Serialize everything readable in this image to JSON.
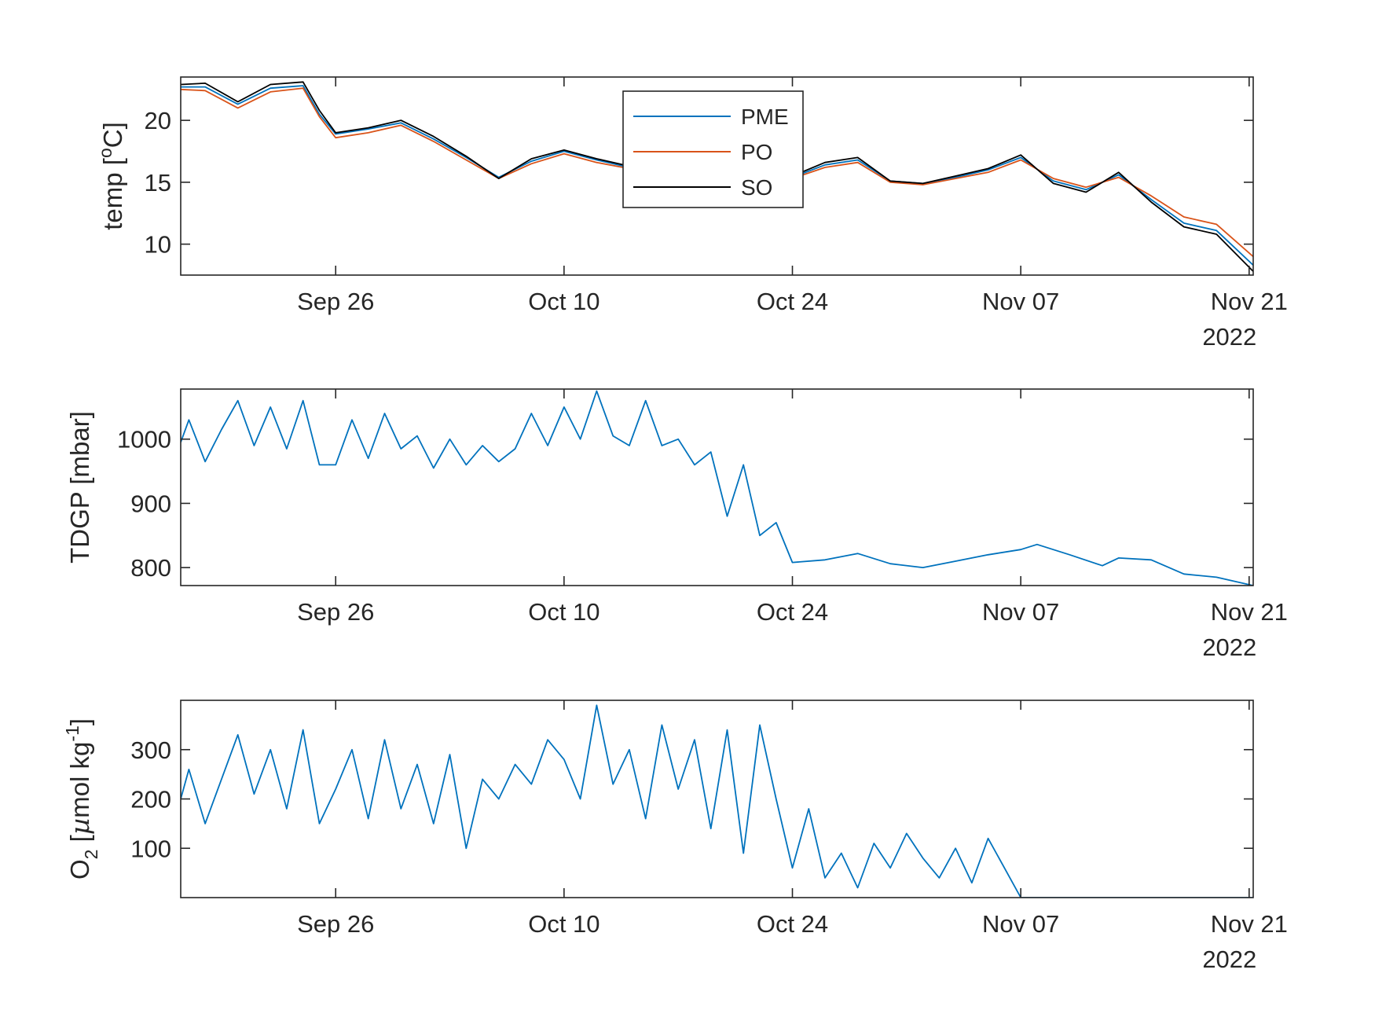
{
  "chart_data": [
    {
      "type": "line",
      "panel": "temperature",
      "ylabel": "temp [oC]",
      "xlim": [
        "2022-09-16T12:00",
        "2022-11-21T06:00"
      ],
      "ylim": [
        7.5,
        23.5
      ],
      "yticks": [
        10,
        15,
        20
      ],
      "xticks": [
        "2022-09-26",
        "2022-10-10",
        "2022-10-24",
        "2022-11-07",
        "2022-11-21"
      ],
      "xtick_labels": [
        "Sep 26",
        "Oct 10",
        "Oct 24",
        "Nov 07",
        "Nov 21"
      ],
      "year_label": "2022",
      "legend_position": "top-center",
      "series": [
        {
          "name": "PME",
          "color": "#0072BD",
          "x": [
            "2022-09-16T12:00",
            "2022-09-18",
            "2022-09-20",
            "2022-09-22",
            "2022-09-24",
            "2022-09-25",
            "2022-09-26",
            "2022-09-28",
            "2022-09-30",
            "2022-10-02",
            "2022-10-04",
            "2022-10-06",
            "2022-10-08",
            "2022-10-10",
            "2022-10-12",
            "2022-10-14",
            "2022-10-16",
            "2022-10-18",
            "2022-10-20",
            "2022-10-22",
            "2022-10-24",
            "2022-10-26",
            "2022-10-28",
            "2022-10-30",
            "2022-11-01",
            "2022-11-03",
            "2022-11-05",
            "2022-11-07",
            "2022-11-09",
            "2022-11-11",
            "2022-11-13",
            "2022-11-15",
            "2022-11-17",
            "2022-11-19",
            "2022-11-21T06:00"
          ],
          "values": [
            22.7,
            22.7,
            21.3,
            22.6,
            22.8,
            20.5,
            18.9,
            19.3,
            19.8,
            18.5,
            17.0,
            15.4,
            16.7,
            17.5,
            16.8,
            16.2,
            16.3,
            16.0,
            15.8,
            15.9,
            15.4,
            16.4,
            16.8,
            15.1,
            14.9,
            15.4,
            16.0,
            17.0,
            15.1,
            14.4,
            15.6,
            13.6,
            11.7,
            11.1,
            8.3
          ]
        },
        {
          "name": "PO",
          "color": "#D95319",
          "x": [
            "2022-09-16T12:00",
            "2022-09-18",
            "2022-09-20",
            "2022-09-22",
            "2022-09-24",
            "2022-09-25",
            "2022-09-26",
            "2022-09-28",
            "2022-09-30",
            "2022-10-02",
            "2022-10-04",
            "2022-10-06",
            "2022-10-08",
            "2022-10-10",
            "2022-10-12",
            "2022-10-14",
            "2022-10-16",
            "2022-10-18",
            "2022-10-20",
            "2022-10-22",
            "2022-10-24",
            "2022-10-26",
            "2022-10-28",
            "2022-10-30",
            "2022-11-01",
            "2022-11-03",
            "2022-11-05",
            "2022-11-07",
            "2022-11-09",
            "2022-11-11",
            "2022-11-13",
            "2022-11-15",
            "2022-11-17",
            "2022-11-19",
            "2022-11-21T06:00"
          ],
          "values": [
            22.5,
            22.4,
            21.0,
            22.3,
            22.6,
            20.3,
            18.6,
            19.0,
            19.6,
            18.3,
            16.8,
            15.3,
            16.5,
            17.3,
            16.6,
            16.1,
            16.2,
            15.9,
            15.7,
            15.8,
            15.3,
            16.2,
            16.6,
            15.0,
            14.8,
            15.3,
            15.8,
            16.8,
            15.3,
            14.6,
            15.4,
            13.9,
            12.2,
            11.6,
            9.0
          ]
        },
        {
          "name": "SO",
          "color": "#000000",
          "x": [
            "2022-09-16T12:00",
            "2022-09-18",
            "2022-09-20",
            "2022-09-22",
            "2022-09-24",
            "2022-09-25",
            "2022-09-26",
            "2022-09-28",
            "2022-09-30",
            "2022-10-02",
            "2022-10-04",
            "2022-10-06",
            "2022-10-08",
            "2022-10-10",
            "2022-10-12",
            "2022-10-14",
            "2022-10-16",
            "2022-10-18",
            "2022-10-20",
            "2022-10-22",
            "2022-10-24",
            "2022-10-26",
            "2022-10-28",
            "2022-10-30",
            "2022-11-01",
            "2022-11-03",
            "2022-11-05",
            "2022-11-07",
            "2022-11-09",
            "2022-11-11",
            "2022-11-13",
            "2022-11-15",
            "2022-11-17",
            "2022-11-19",
            "2022-11-21T06:00"
          ],
          "values": [
            22.9,
            23.0,
            21.5,
            22.9,
            23.1,
            20.8,
            19.0,
            19.4,
            20.0,
            18.7,
            17.1,
            15.3,
            16.9,
            17.6,
            16.9,
            16.3,
            16.4,
            16.1,
            15.9,
            16.0,
            15.5,
            16.6,
            17.0,
            15.1,
            14.9,
            15.5,
            16.1,
            17.2,
            14.9,
            14.2,
            15.8,
            13.4,
            11.4,
            10.8,
            7.8
          ]
        }
      ]
    },
    {
      "type": "line",
      "panel": "tdgp",
      "ylabel": "TDGP [mbar]",
      "xlim": [
        "2022-09-16T12:00",
        "2022-11-21T06:00"
      ],
      "ylim": [
        772,
        1078
      ],
      "yticks": [
        800,
        900,
        1000
      ],
      "xticks": [
        "2022-09-26",
        "2022-10-10",
        "2022-10-24",
        "2022-11-07",
        "2022-11-21"
      ],
      "xtick_labels": [
        "Sep 26",
        "Oct 10",
        "Oct 24",
        "Nov 07",
        "Nov 21"
      ],
      "year_label": "2022",
      "series": [
        {
          "color": "#0072BD",
          "x": [
            "2022-09-16T12:00",
            "2022-09-17",
            "2022-09-18",
            "2022-09-19",
            "2022-09-20",
            "2022-09-21",
            "2022-09-22",
            "2022-09-23",
            "2022-09-24",
            "2022-09-25",
            "2022-09-26",
            "2022-09-27",
            "2022-09-28",
            "2022-09-29",
            "2022-09-30",
            "2022-10-01",
            "2022-10-02",
            "2022-10-03",
            "2022-10-04",
            "2022-10-05",
            "2022-10-06",
            "2022-10-07",
            "2022-10-08",
            "2022-10-09",
            "2022-10-10",
            "2022-10-11",
            "2022-10-12",
            "2022-10-13",
            "2022-10-14",
            "2022-10-15",
            "2022-10-16",
            "2022-10-17",
            "2022-10-18",
            "2022-10-19",
            "2022-10-20",
            "2022-10-21",
            "2022-10-22",
            "2022-10-23",
            "2022-10-24",
            "2022-10-26",
            "2022-10-28",
            "2022-10-30",
            "2022-11-01",
            "2022-11-03",
            "2022-11-05",
            "2022-11-07",
            "2022-11-08",
            "2022-11-10",
            "2022-11-12",
            "2022-11-13",
            "2022-11-15",
            "2022-11-17",
            "2022-11-19",
            "2022-11-21T06:00"
          ],
          "values": [
            995,
            1030,
            965,
            1015,
            1060,
            990,
            1050,
            985,
            1060,
            960,
            960,
            1030,
            970,
            1040,
            985,
            1005,
            955,
            1000,
            960,
            990,
            965,
            985,
            1040,
            990,
            1050,
            1000,
            1075,
            1005,
            990,
            1060,
            990,
            1000,
            960,
            980,
            880,
            960,
            850,
            870,
            808,
            812,
            822,
            806,
            800,
            810,
            820,
            828,
            836,
            820,
            803,
            815,
            812,
            790,
            785,
            772
          ]
        }
      ]
    },
    {
      "type": "line",
      "panel": "oxygen",
      "ylabel": "O2 [µmol kg-1]",
      "xlim": [
        "2022-09-16T12:00",
        "2022-11-21T06:00"
      ],
      "ylim": [
        0,
        400
      ],
      "yticks": [
        100,
        200,
        300
      ],
      "xticks": [
        "2022-09-26",
        "2022-10-10",
        "2022-10-24",
        "2022-11-07",
        "2022-11-21"
      ],
      "xtick_labels": [
        "Sep 26",
        "Oct 10",
        "Oct 24",
        "Nov 07",
        "Nov 21"
      ],
      "year_label": "2022",
      "series": [
        {
          "color": "#0072BD",
          "x": [
            "2022-09-16T12:00",
            "2022-09-17",
            "2022-09-18",
            "2022-09-19",
            "2022-09-20",
            "2022-09-21",
            "2022-09-22",
            "2022-09-23",
            "2022-09-24",
            "2022-09-25",
            "2022-09-26",
            "2022-09-27",
            "2022-09-28",
            "2022-09-29",
            "2022-09-30",
            "2022-10-01",
            "2022-10-02",
            "2022-10-03",
            "2022-10-04",
            "2022-10-05",
            "2022-10-06",
            "2022-10-07",
            "2022-10-08",
            "2022-10-09",
            "2022-10-10",
            "2022-10-11",
            "2022-10-12",
            "2022-10-13",
            "2022-10-14",
            "2022-10-15",
            "2022-10-16",
            "2022-10-17",
            "2022-10-18",
            "2022-10-19",
            "2022-10-20",
            "2022-10-21",
            "2022-10-22",
            "2022-10-23",
            "2022-10-24",
            "2022-10-25",
            "2022-10-26",
            "2022-10-27",
            "2022-10-28",
            "2022-10-29",
            "2022-10-30",
            "2022-10-31",
            "2022-11-01",
            "2022-11-02",
            "2022-11-03",
            "2022-11-04",
            "2022-11-05",
            "2022-11-06",
            "2022-11-07",
            "2022-11-09",
            "2022-11-12",
            "2022-11-15",
            "2022-11-18",
            "2022-11-21T06:00"
          ],
          "values": [
            200,
            260,
            150,
            240,
            330,
            210,
            300,
            180,
            340,
            150,
            220,
            300,
            160,
            320,
            180,
            270,
            150,
            290,
            100,
            240,
            200,
            270,
            230,
            320,
            280,
            200,
            390,
            230,
            300,
            160,
            350,
            220,
            320,
            140,
            340,
            90,
            350,
            200,
            60,
            180,
            40,
            90,
            20,
            110,
            60,
            130,
            80,
            40,
            100,
            30,
            120,
            60,
            0,
            0,
            0,
            0,
            0,
            0
          ]
        }
      ]
    }
  ]
}
